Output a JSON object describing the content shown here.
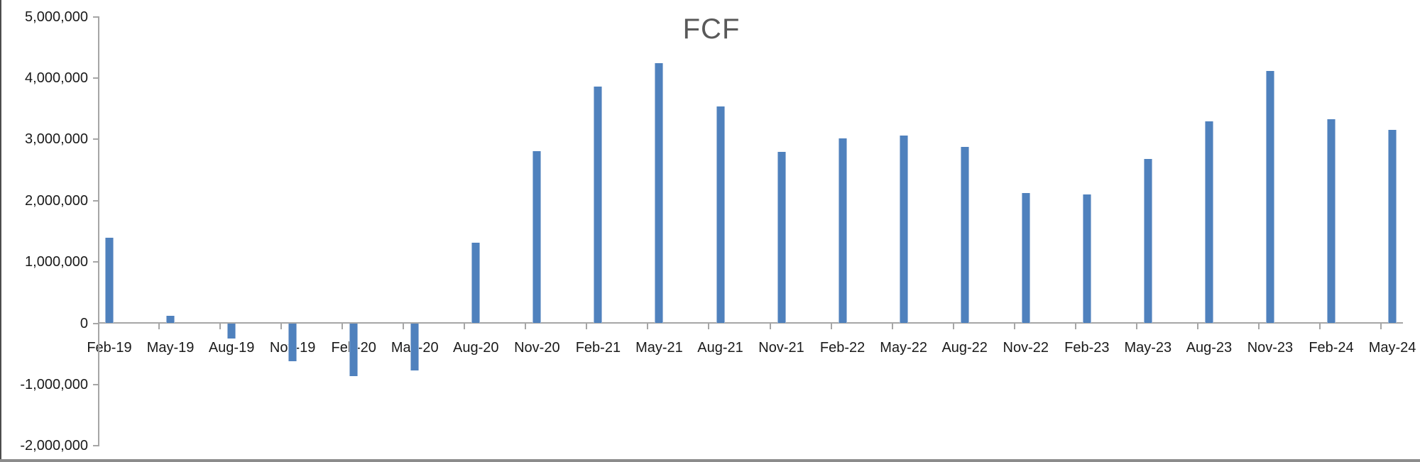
{
  "window": {
    "left_border_color": "#4d4d4d",
    "bottom_strip_color": "#8c8c8c",
    "background_color": "#ffffff"
  },
  "chart_data": {
    "type": "bar",
    "title": "FCF",
    "xlabel": "",
    "ylabel": "",
    "grid": "off",
    "legend": "none",
    "bar_color": "#4f81bd",
    "bar_edge_color": "#9fb9da",
    "axis_color": "#a6a6a6",
    "title_color": "#595959",
    "text_color": "#1a1a1a",
    "ylim": [
      -2000000,
      5000000
    ],
    "y_axis": {
      "tick_values": [
        5000000,
        4000000,
        3000000,
        2000000,
        1000000,
        0,
        -1000000,
        -2000000
      ],
      "tick_labels": [
        "5,000,000",
        "4,000,000",
        "3,000,000",
        "2,000,000",
        "1,000,000",
        "0",
        "-1,000,000",
        "-2,000,000"
      ]
    },
    "categories": [
      "Feb-19",
      "May-19",
      "Aug-19",
      "Nov-19",
      "Feb-20",
      "May-20",
      "Aug-20",
      "Nov-20",
      "Feb-21",
      "May-21",
      "Aug-21",
      "Nov-21",
      "Feb-22",
      "May-22",
      "Aug-22",
      "Nov-22",
      "Feb-23",
      "May-23",
      "Aug-23",
      "Nov-23",
      "Feb-24",
      "May-24"
    ],
    "values": [
      1400000,
      120000,
      -250000,
      -620000,
      -860000,
      -775000,
      1310000,
      2810000,
      3860000,
      4240000,
      3540000,
      2790000,
      3010000,
      3060000,
      2880000,
      2120000,
      2100000,
      2680000,
      3290000,
      4110000,
      3330000,
      3150000
    ]
  }
}
